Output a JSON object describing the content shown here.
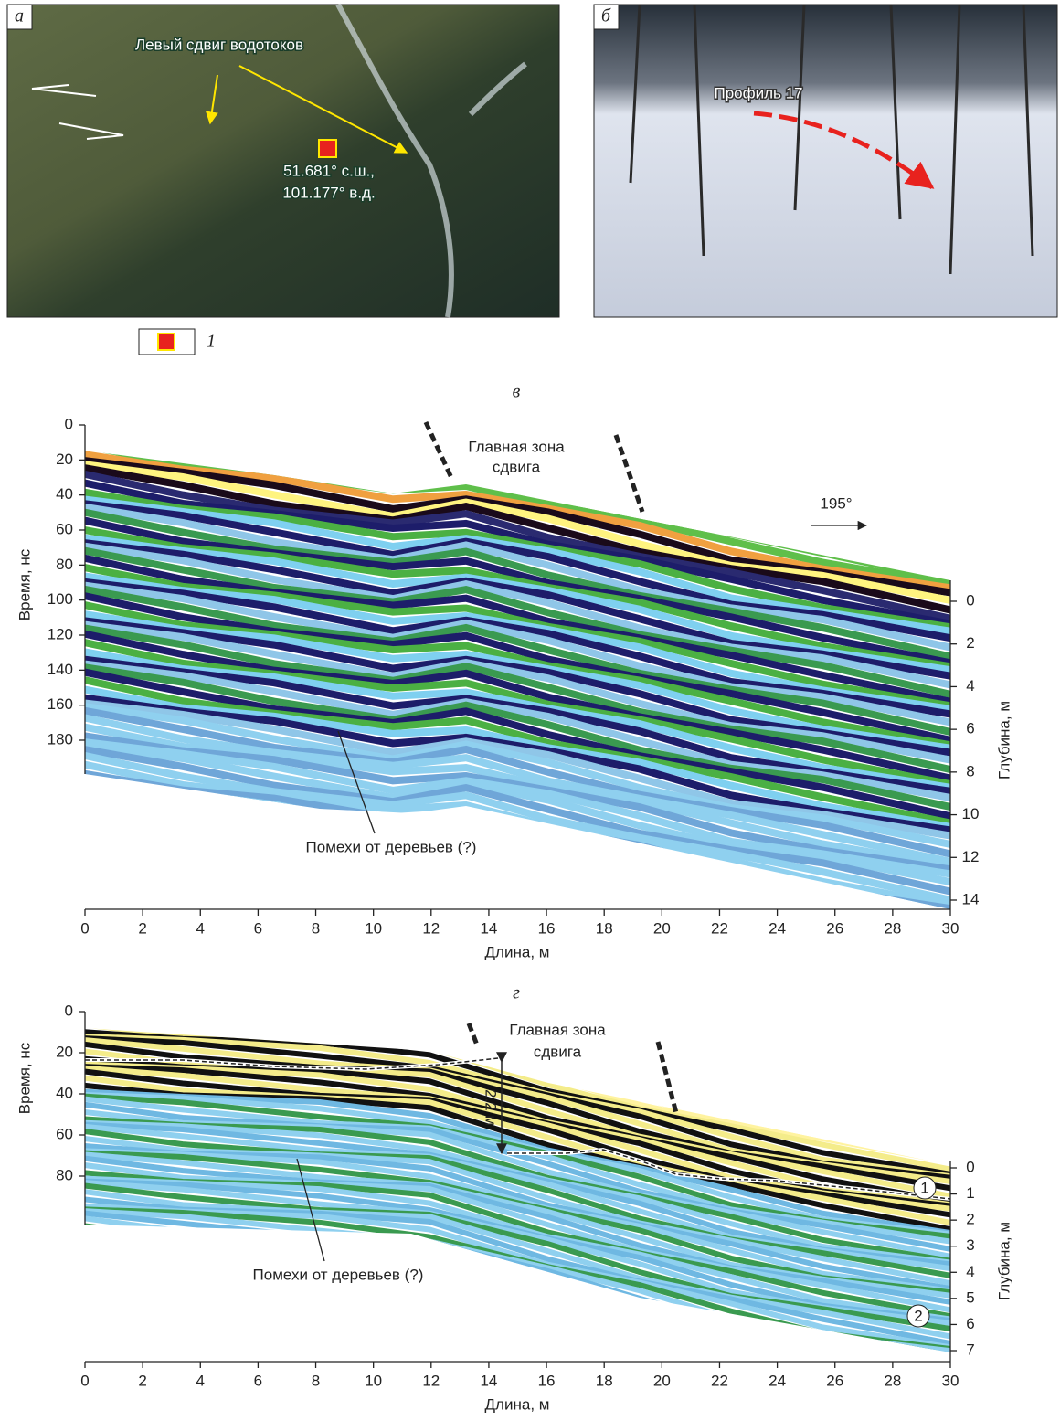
{
  "panels": {
    "a": {
      "label": "а",
      "annotation": "Левый сдвиг водотоков",
      "coords": [
        "51.681° с.ш.,",
        "101.177° в.д."
      ],
      "legend_number": "1"
    },
    "b": {
      "label": "б",
      "annotation": "Профиль 17"
    },
    "c": {
      "label": "в",
      "x_label": "Длина, м",
      "y_label": "Время, нс",
      "y2_label": "Глубина, м",
      "xticks": [
        0,
        2,
        4,
        6,
        8,
        10,
        12,
        14,
        16,
        18,
        20,
        22,
        24,
        26,
        28,
        30
      ],
      "yticks": [
        0,
        20,
        40,
        60,
        80,
        100,
        120,
        140,
        160,
        180
      ],
      "y2ticks": [
        0,
        2,
        4,
        6,
        8,
        10,
        12,
        14
      ],
      "zone_label": [
        "Главная зона",
        "сдвига"
      ],
      "direction": "195°",
      "note": "Помехи от деревьев (?)"
    },
    "d": {
      "label": "г",
      "x_label": "Длина, м",
      "y_label": "Время, нс",
      "y2_label": "Глубина, м",
      "xticks": [
        0,
        2,
        4,
        6,
        8,
        10,
        12,
        14,
        16,
        18,
        20,
        22,
        24,
        26,
        28,
        30
      ],
      "yticks": [
        0,
        20,
        40,
        60,
        80
      ],
      "y2ticks": [
        0,
        1,
        2,
        3,
        4,
        5,
        6,
        7
      ],
      "zone_label": [
        "Главная зона",
        "сдвига"
      ],
      "measure": "2.2 м",
      "units": [
        "1",
        "2"
      ],
      "note": "Помехи от деревьев (?)"
    }
  }
}
